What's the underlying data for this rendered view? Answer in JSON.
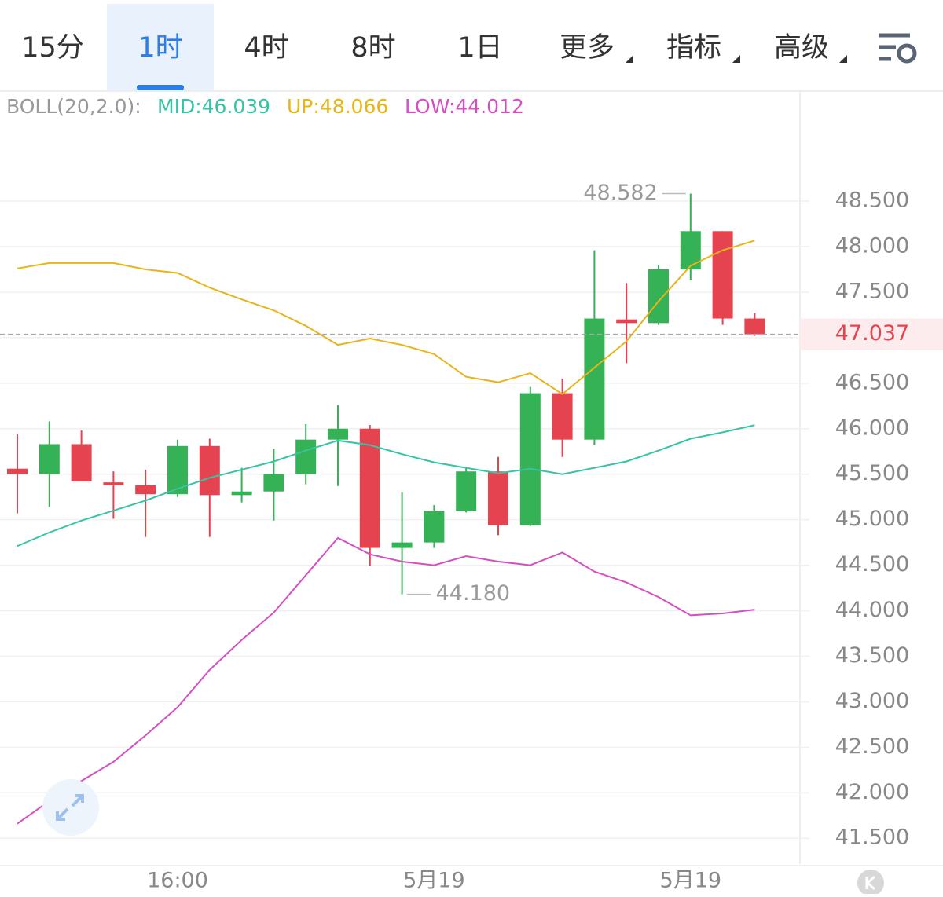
{
  "tabs": [
    "15分",
    "1时",
    "4时",
    "8时",
    "1日",
    "更多",
    "指标",
    "高级"
  ],
  "chart_data": {
    "type": "candlestick",
    "indicator": "BOLL(20,2.0):",
    "categories": [
      null,
      null,
      null,
      null,
      null,
      "16:00",
      null,
      null,
      null,
      null,
      null,
      null,
      null,
      "5月19",
      null,
      null,
      null,
      null,
      null,
      null,
      null,
      "5月19",
      null,
      null
    ],
    "open": [
      45.56,
      45.5,
      45.83,
      45.41,
      45.38,
      45.28,
      45.81,
      45.27,
      45.31,
      45.5,
      45.88,
      46.0,
      44.69,
      44.75,
      45.1,
      45.53,
      44.94,
      46.39,
      45.88,
      47.2,
      47.16,
      47.75,
      48.17,
      47.21
    ],
    "high": [
      45.94,
      46.08,
      45.98,
      45.53,
      45.55,
      45.88,
      45.89,
      45.57,
      45.78,
      46.05,
      46.26,
      46.04,
      45.3,
      45.16,
      45.57,
      45.69,
      46.46,
      46.55,
      47.96,
      47.6,
      47.8,
      48.582,
      48.17,
      47.27
    ],
    "low": [
      45.07,
      45.14,
      45.42,
      45.01,
      44.81,
      45.25,
      44.81,
      45.19,
      44.99,
      45.39,
      45.37,
      44.49,
      44.18,
      44.69,
      45.08,
      44.83,
      44.93,
      45.69,
      45.82,
      46.72,
      47.14,
      47.63,
      47.14,
      47.02
    ],
    "close": [
      45.5,
      45.83,
      45.42,
      45.38,
      45.28,
      45.81,
      45.27,
      45.31,
      45.5,
      45.88,
      46.0,
      44.69,
      44.75,
      45.1,
      45.53,
      44.94,
      46.39,
      45.88,
      47.21,
      47.16,
      47.75,
      48.17,
      47.21,
      47.037
    ],
    "up_color": "#35b156",
    "down_color": "#e5434f",
    "series": [
      {
        "name": "MID:46.039",
        "color": "#35c4a4",
        "values": [
          44.71,
          44.86,
          44.99,
          45.1,
          45.21,
          45.34,
          45.46,
          45.55,
          45.64,
          45.76,
          45.87,
          45.82,
          45.72,
          45.63,
          45.57,
          45.51,
          45.56,
          45.5,
          45.57,
          45.64,
          45.76,
          45.89,
          45.96,
          46.039
        ]
      },
      {
        "name": "UP:48.066",
        "color": "#e9b419",
        "values": [
          47.76,
          47.82,
          47.82,
          47.82,
          47.75,
          47.71,
          47.55,
          47.42,
          47.3,
          47.13,
          46.92,
          46.99,
          46.92,
          46.82,
          46.57,
          46.51,
          46.61,
          46.38,
          46.67,
          46.96,
          47.4,
          47.79,
          47.96,
          48.066
        ]
      },
      {
        "name": "LOW:44.012",
        "color": "#d64fc2",
        "values": [
          41.66,
          41.91,
          42.13,
          42.34,
          42.63,
          42.94,
          43.35,
          43.68,
          43.98,
          44.39,
          44.8,
          44.62,
          44.54,
          44.5,
          44.6,
          44.54,
          44.5,
          44.64,
          44.43,
          44.31,
          44.15,
          43.95,
          43.97,
          44.012
        ]
      }
    ],
    "last_price": 47.037,
    "annotations": [
      {
        "value": 48.582,
        "label": "48.582",
        "of": "high"
      },
      {
        "value": 44.18,
        "label": "44.180",
        "of": "low"
      }
    ],
    "ylim": [
      41.2,
      49.7
    ],
    "yticks": [
      {
        "value": 41.5,
        "label": "41.500"
      },
      {
        "value": 42,
        "label": "42.000"
      },
      {
        "value": 42.5,
        "label": "42.500"
      },
      {
        "value": 43,
        "label": "43.000"
      },
      {
        "value": 43.5,
        "label": "43.500"
      },
      {
        "value": 44,
        "label": "44.000"
      },
      {
        "value": 44.5,
        "label": "44.500"
      },
      {
        "value": 45,
        "label": "45.000"
      },
      {
        "value": 45.5,
        "label": "45.500"
      },
      {
        "value": 46,
        "label": "46.000"
      },
      {
        "value": 46.5,
        "label": "46.500"
      },
      {
        "value": 47,
        "label": "47.000"
      },
      {
        "value": 47.5,
        "label": "47.500"
      },
      {
        "value": 48,
        "label": "48.000"
      },
      {
        "value": 48.5,
        "label": "48.500"
      }
    ],
    "grid": true
  }
}
